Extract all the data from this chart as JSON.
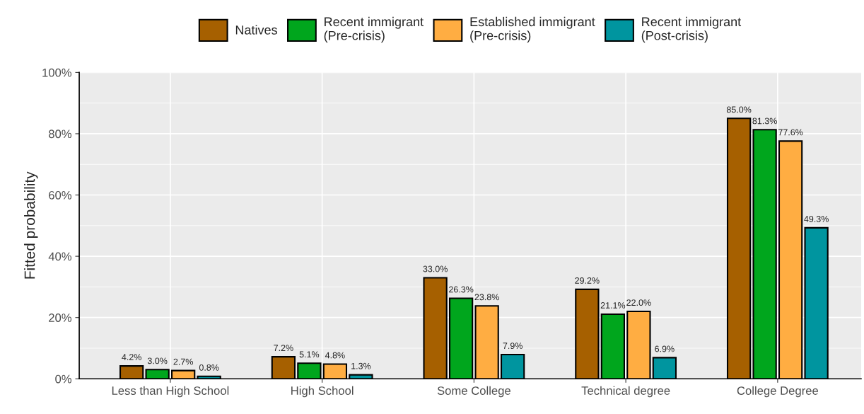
{
  "chart_data": {
    "type": "bar",
    "ylabel": "Fitted probability",
    "categories": [
      "Less than High School",
      "High School",
      "Some College",
      "Technical degree",
      "College Degree"
    ],
    "series": [
      {
        "name": "Natives",
        "color": "#a66000",
        "values": [
          4.2,
          7.2,
          33.0,
          29.2,
          85.0
        ],
        "value_labels": [
          "4.2%",
          "7.2%",
          "33.0%",
          "29.2%",
          "85.0%"
        ]
      },
      {
        "name": "Recent immigrant\n(Pre-crisis)",
        "color": "#00a61d",
        "values": [
          3.0,
          5.1,
          26.3,
          21.1,
          81.3
        ],
        "value_labels": [
          "3.0%",
          "5.1%",
          "26.3%",
          "21.1%",
          "81.3%"
        ]
      },
      {
        "name": "Established immigrant\n(Pre-crisis)",
        "color": "#ffad42",
        "values": [
          2.7,
          4.8,
          23.8,
          22.0,
          77.6
        ],
        "value_labels": [
          "2.7%",
          "4.8%",
          "23.8%",
          "22.0%",
          "77.6%"
        ]
      },
      {
        "name": "Recent immigrant\n(Post-crisis)",
        "color": "#00959f",
        "values": [
          0.8,
          1.3,
          7.9,
          6.9,
          49.3
        ],
        "value_labels": [
          "0.8%",
          "1.3%",
          "7.9%",
          "6.9%",
          "49.3%"
        ]
      }
    ],
    "ylim": [
      0,
      100
    ],
    "yticks": [
      {
        "value": 0,
        "label": "0%"
      },
      {
        "value": 20,
        "label": "20%"
      },
      {
        "value": 40,
        "label": "40%"
      },
      {
        "value": 60,
        "label": "60%"
      },
      {
        "value": 80,
        "label": "80%"
      },
      {
        "value": 100,
        "label": "100%"
      }
    ],
    "grid": true,
    "legend": "top"
  }
}
